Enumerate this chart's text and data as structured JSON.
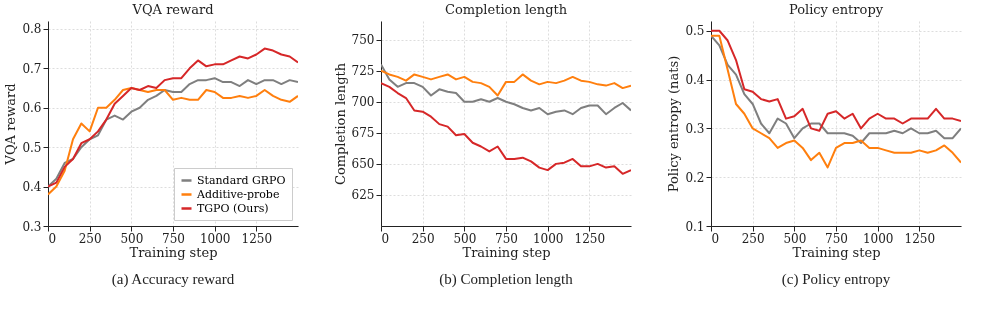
{
  "chart_data": [
    {
      "type": "line",
      "title": "VQA reward",
      "xlabel": "Training step",
      "ylabel": "VQA reward",
      "annotations": [
        "(a) Accuracy reward"
      ],
      "xlim": [
        0,
        1500
      ],
      "xticks": [
        0,
        250,
        500,
        750,
        1000,
        1250
      ],
      "ylim": [
        0.3,
        0.82
      ],
      "yticks": [
        0.3,
        0.4,
        0.5,
        0.6,
        0.7,
        0.8
      ],
      "grid": true,
      "legend": "bottom right",
      "x": [
        0,
        50,
        100,
        150,
        200,
        250,
        300,
        350,
        400,
        450,
        500,
        550,
        600,
        650,
        700,
        750,
        800,
        850,
        900,
        950,
        1000,
        1050,
        1100,
        1150,
        1200,
        1250,
        1300,
        1350,
        1400,
        1450,
        1500
      ],
      "series": [
        {
          "name": "Standard GRPO",
          "color": "#7f7f7f",
          "values": [
            0.4,
            0.42,
            0.46,
            0.47,
            0.5,
            0.52,
            0.53,
            0.57,
            0.58,
            0.57,
            0.59,
            0.6,
            0.62,
            0.63,
            0.645,
            0.64,
            0.64,
            0.66,
            0.67,
            0.67,
            0.675,
            0.665,
            0.665,
            0.655,
            0.67,
            0.66,
            0.67,
            0.67,
            0.66,
            0.67,
            0.665
          ]
        },
        {
          "name": "Additive-probe",
          "color": "#ff7f0e",
          "values": [
            0.38,
            0.4,
            0.44,
            0.52,
            0.56,
            0.54,
            0.6,
            0.6,
            0.62,
            0.645,
            0.65,
            0.645,
            0.64,
            0.645,
            0.645,
            0.62,
            0.625,
            0.62,
            0.62,
            0.645,
            0.64,
            0.625,
            0.625,
            0.63,
            0.625,
            0.63,
            0.645,
            0.63,
            0.62,
            0.615,
            0.63
          ]
        },
        {
          "name": "TGPO (Ours)",
          "color": "#d62728",
          "values": [
            0.4,
            0.41,
            0.45,
            0.47,
            0.51,
            0.52,
            0.54,
            0.57,
            0.61,
            0.63,
            0.65,
            0.645,
            0.655,
            0.65,
            0.67,
            0.675,
            0.675,
            0.7,
            0.72,
            0.705,
            0.71,
            0.71,
            0.72,
            0.73,
            0.725,
            0.735,
            0.75,
            0.745,
            0.735,
            0.73,
            0.715
          ]
        }
      ]
    },
    {
      "type": "line",
      "title": "Completion length",
      "xlabel": "Training step",
      "ylabel": "Completion length",
      "annotations": [
        "(b) Completion length"
      ],
      "xlim": [
        0,
        1500
      ],
      "xticks": [
        0,
        250,
        500,
        750,
        1000,
        1250
      ],
      "ylim": [
        600,
        765
      ],
      "yticks": [
        625,
        650,
        675,
        700,
        725,
        750
      ],
      "grid": true,
      "x": [
        0,
        50,
        100,
        150,
        200,
        250,
        300,
        350,
        400,
        450,
        500,
        550,
        600,
        650,
        700,
        750,
        800,
        850,
        900,
        950,
        1000,
        1050,
        1100,
        1150,
        1200,
        1250,
        1300,
        1350,
        1400,
        1450,
        1500
      ],
      "series": [
        {
          "color": "#7f7f7f",
          "values": [
            730,
            718,
            712,
            715,
            715,
            712,
            705,
            710,
            708,
            707,
            700,
            700,
            702,
            700,
            703,
            700,
            698,
            695,
            693,
            695,
            690,
            692,
            693,
            690,
            695,
            697,
            697,
            690,
            695,
            699,
            693
          ]
        },
        {
          "color": "#ff7f0e",
          "values": [
            725,
            722,
            720,
            717,
            722,
            720,
            718,
            720,
            722,
            718,
            720,
            716,
            715,
            712,
            705,
            716,
            716,
            722,
            717,
            714,
            716,
            715,
            717,
            720,
            717,
            716,
            714,
            713,
            715,
            711,
            713
          ]
        },
        {
          "color": "#d62728",
          "values": [
            715,
            712,
            707,
            703,
            693,
            692,
            688,
            682,
            680,
            673,
            674,
            667,
            664,
            660,
            664,
            654,
            654,
            655,
            652,
            647,
            645,
            650,
            651,
            654,
            648,
            648,
            650,
            647,
            648,
            642,
            645
          ]
        }
      ]
    },
    {
      "type": "line",
      "title": "Policy entropy",
      "xlabel": "Training step",
      "ylabel": "Policy entropy (nats)",
      "annotations": [
        "(c) Policy entropy"
      ],
      "xlim": [
        0,
        1500
      ],
      "xticks": [
        0,
        250,
        500,
        750,
        1000,
        1250
      ],
      "ylim": [
        0.1,
        0.52
      ],
      "yticks": [
        0.1,
        0.2,
        0.3,
        0.4,
        0.5
      ],
      "grid": true,
      "x": [
        0,
        50,
        100,
        150,
        200,
        250,
        300,
        350,
        400,
        450,
        500,
        550,
        600,
        650,
        700,
        750,
        800,
        850,
        900,
        950,
        1000,
        1050,
        1100,
        1150,
        1200,
        1250,
        1300,
        1350,
        1400,
        1450,
        1500
      ],
      "series": [
        {
          "color": "#7f7f7f",
          "values": [
            0.49,
            0.47,
            0.43,
            0.41,
            0.37,
            0.35,
            0.31,
            0.29,
            0.32,
            0.31,
            0.28,
            0.3,
            0.31,
            0.31,
            0.29,
            0.29,
            0.29,
            0.285,
            0.27,
            0.29,
            0.29,
            0.29,
            0.295,
            0.29,
            0.3,
            0.29,
            0.29,
            0.295,
            0.28,
            0.28,
            0.3
          ]
        },
        {
          "color": "#ff7f0e",
          "values": [
            0.49,
            0.49,
            0.42,
            0.35,
            0.33,
            0.3,
            0.29,
            0.28,
            0.26,
            0.27,
            0.275,
            0.26,
            0.235,
            0.25,
            0.22,
            0.26,
            0.27,
            0.27,
            0.275,
            0.26,
            0.26,
            0.255,
            0.25,
            0.25,
            0.25,
            0.255,
            0.25,
            0.255,
            0.265,
            0.25,
            0.23
          ]
        },
        {
          "color": "#d62728",
          "values": [
            0.5,
            0.5,
            0.48,
            0.44,
            0.38,
            0.375,
            0.36,
            0.355,
            0.36,
            0.32,
            0.325,
            0.34,
            0.3,
            0.295,
            0.33,
            0.335,
            0.32,
            0.33,
            0.3,
            0.32,
            0.33,
            0.32,
            0.32,
            0.31,
            0.32,
            0.32,
            0.32,
            0.34,
            0.32,
            0.32,
            0.315
          ]
        }
      ]
    }
  ]
}
